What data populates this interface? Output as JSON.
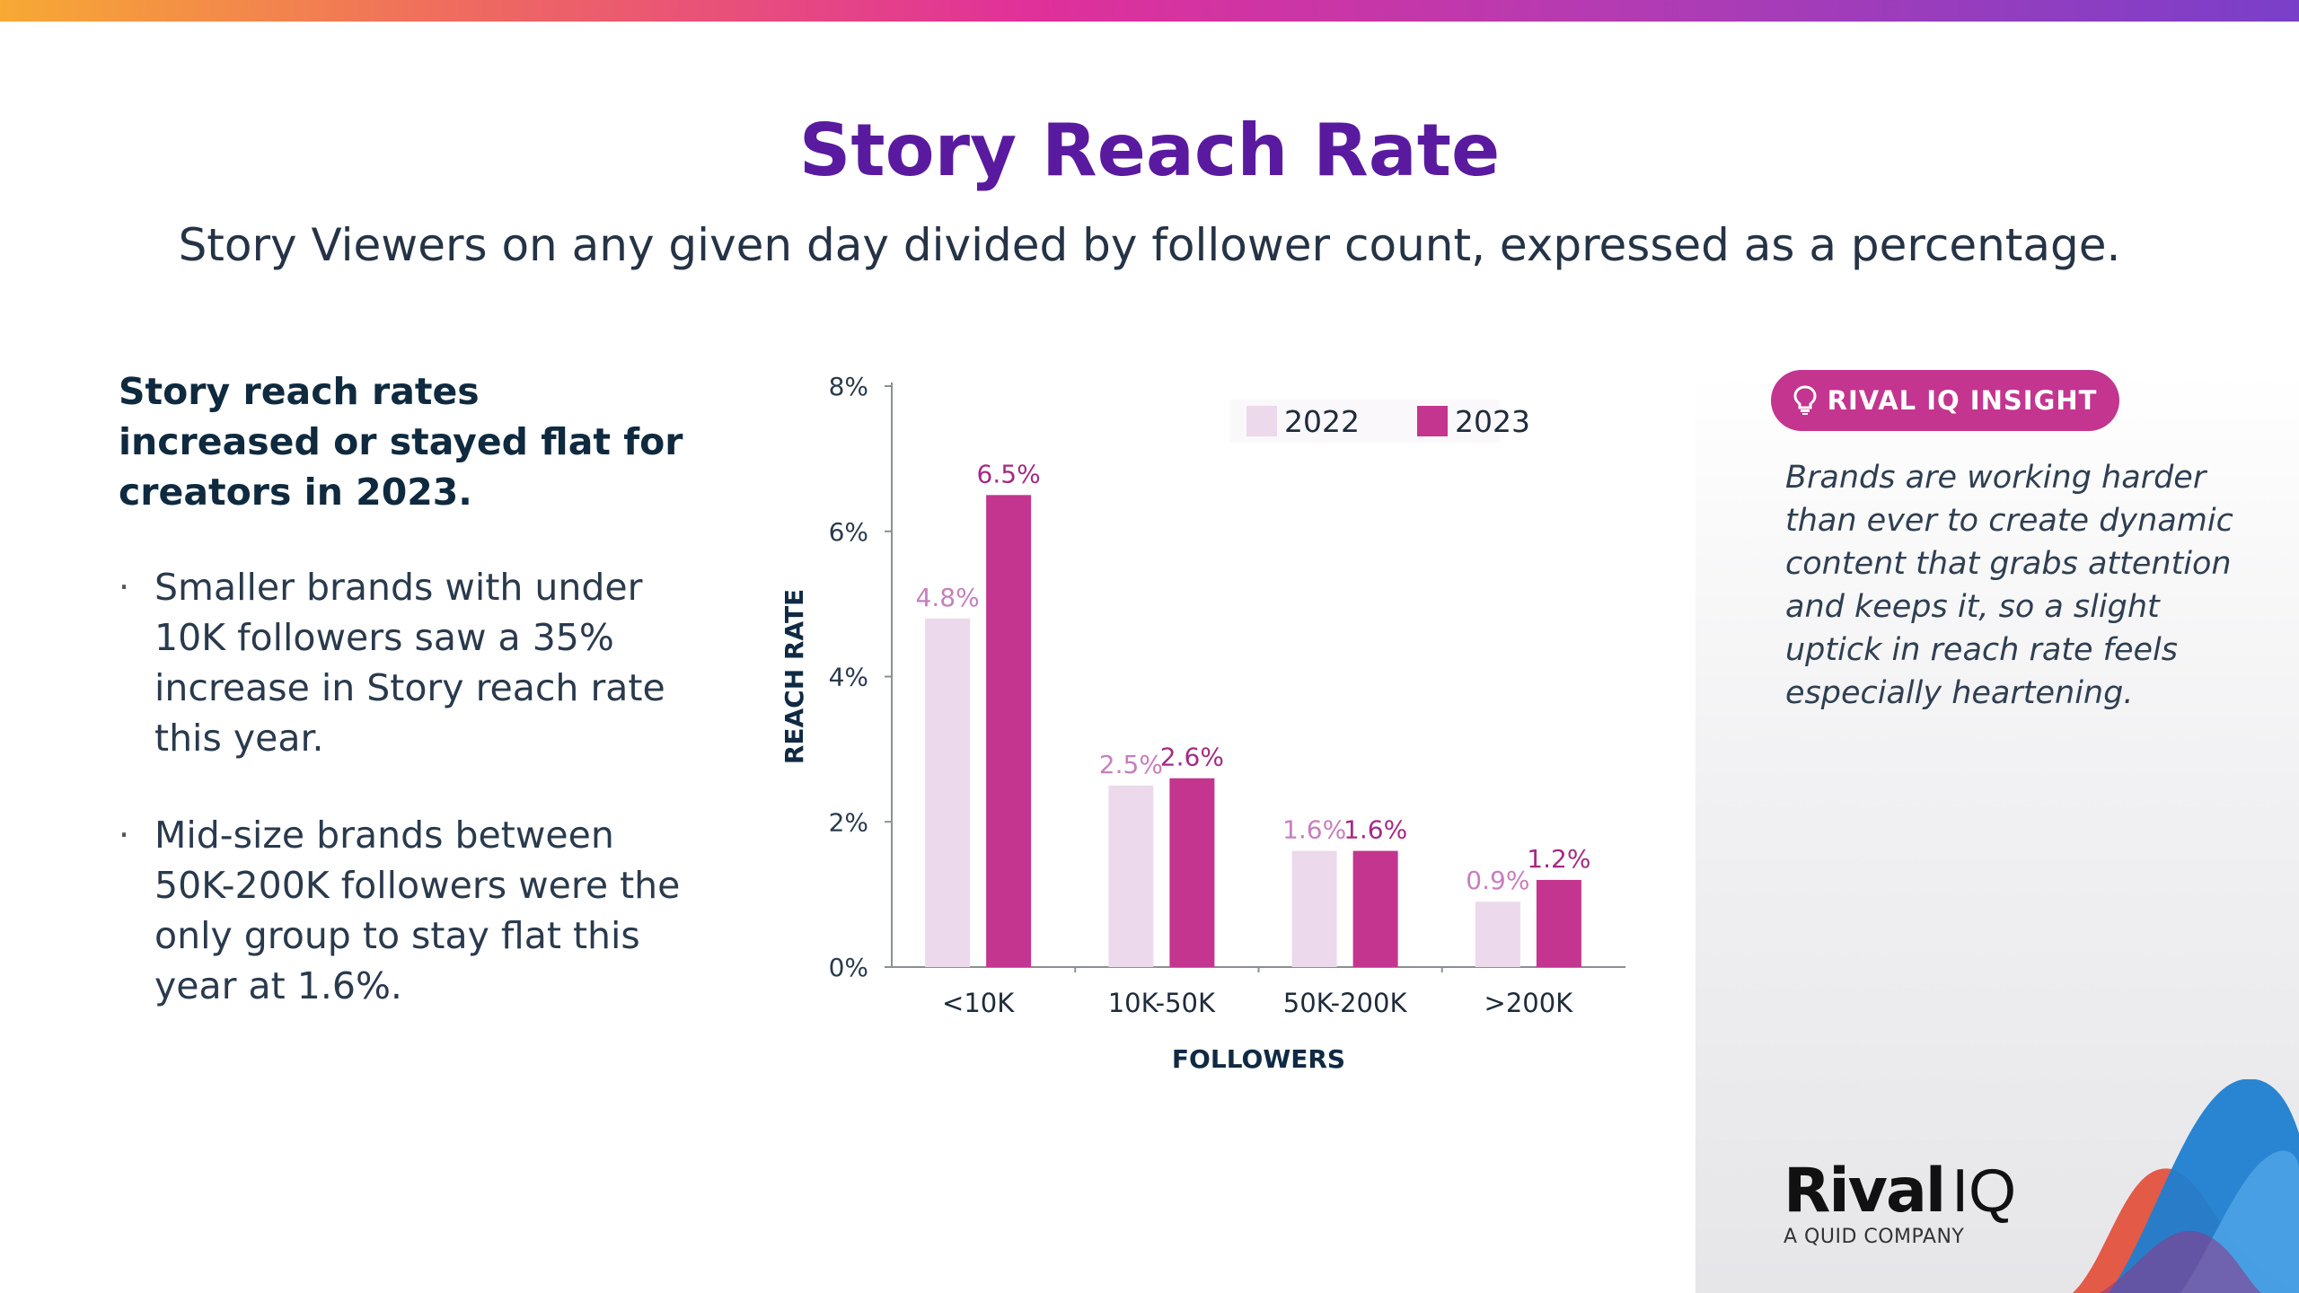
{
  "header": {
    "title": "Story Reach Rate",
    "subtitle": "Story Viewers on any given day divided by follower count, expressed as a percentage."
  },
  "summary": {
    "headline": "Story reach rates increased or stayed flat for creators in 2023.",
    "bullets": [
      "Smaller brands with under 10K followers saw a 35% increase in Story reach rate this year.",
      "Mid-size brands between 50K-200K followers were the only group to stay flat this year at 1.6%."
    ],
    "bullet_glyph": "·"
  },
  "insight": {
    "badge": "RIVAL IQ INSIGHT",
    "text": "Brands are working harder than ever to create dynamic content that grabs attention and keeps it, so a slight uptick in reach rate feels especially heartening."
  },
  "logo": {
    "bold": "Rival",
    "light": "IQ",
    "tagline": "A QUID COMPANY"
  },
  "colors": {
    "title": "#5a1aa0",
    "series_2022": "#ecd9eb",
    "series_2023": "#c3358f",
    "label_2022": "#c77fbd",
    "label_2023": "#a32a84",
    "badge": "#c3358f"
  },
  "chart_data": {
    "type": "bar",
    "title": "",
    "categories": [
      "<10K",
      "10K-50K",
      "50K-200K",
      ">200K"
    ],
    "series": [
      {
        "name": "2022",
        "values": [
          4.8,
          2.5,
          1.6,
          0.9
        ],
        "labels": [
          "4.8%",
          "2.5%",
          "1.6%",
          "0.9%"
        ]
      },
      {
        "name": "2023",
        "values": [
          6.5,
          2.6,
          1.6,
          1.2
        ],
        "labels": [
          "6.5%",
          "2.6%",
          "1.6%",
          "1.2%"
        ]
      }
    ],
    "xlabel": "FOLLOWERS",
    "ylabel": "REACH RATE",
    "ylim": [
      0,
      8
    ],
    "yticks": [
      0,
      2,
      4,
      6,
      8
    ],
    "ytick_labels": [
      "0%",
      "2%",
      "4%",
      "6%",
      "8%"
    ],
    "legend": "top-right",
    "grid": false
  }
}
